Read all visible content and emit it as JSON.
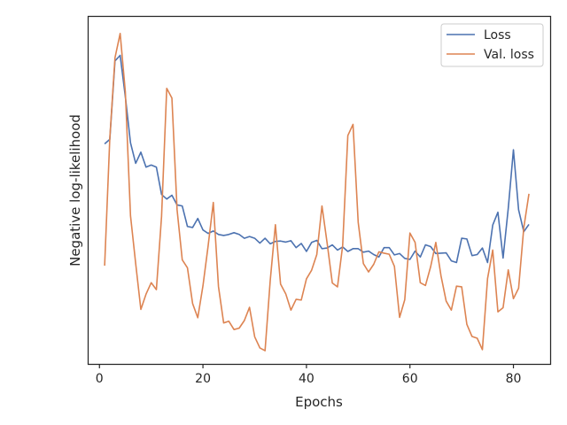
{
  "chart_data": {
    "type": "line",
    "title": "",
    "xlabel": "Epochs",
    "ylabel": "Negative log-likelihood",
    "xlim": [
      -2.1,
      87.1
    ],
    "ylim": [
      0,
      100
    ],
    "x_ticks": [
      0,
      20,
      40,
      60,
      80
    ],
    "y_ticks_visible": false,
    "grid": false,
    "legend": {
      "position": "top-right"
    },
    "colors": {
      "loss": "#4c72b0",
      "val_loss": "#dd8452",
      "axis": "#262626"
    },
    "x": [
      1,
      2,
      3,
      4,
      5,
      6,
      7,
      8,
      9,
      10,
      11,
      12,
      13,
      14,
      15,
      16,
      17,
      18,
      19,
      20,
      21,
      22,
      23,
      24,
      25,
      26,
      27,
      28,
      29,
      30,
      31,
      32,
      33,
      34,
      35,
      36,
      37,
      38,
      39,
      40,
      41,
      42,
      43,
      44,
      45,
      46,
      47,
      48,
      49,
      50,
      51,
      52,
      53,
      54,
      55,
      56,
      57,
      58,
      59,
      60,
      61,
      62,
      63,
      64,
      65,
      66,
      67,
      68,
      69,
      70,
      71,
      72,
      73,
      74,
      75,
      76,
      77,
      78,
      79,
      80,
      81,
      82,
      83
    ],
    "series": [
      {
        "name": "Loss",
        "values": [
          63.4,
          64.7,
          87.3,
          88.9,
          77.0,
          63.7,
          57.8,
          61.0,
          56.7,
          57.3,
          56.7,
          48.8,
          47.5,
          48.6,
          45.8,
          45.5,
          39.6,
          39.3,
          41.9,
          38.6,
          37.6,
          38.3,
          37.3,
          37.0,
          37.3,
          37.8,
          37.3,
          36.2,
          36.7,
          36.2,
          34.8,
          36.2,
          34.6,
          35.3,
          35.4,
          35.1,
          35.5,
          33.5,
          34.7,
          32.4,
          35.0,
          35.6,
          33.2,
          33.4,
          34.3,
          32.8,
          33.7,
          32.4,
          33.2,
          33.2,
          32.2,
          32.5,
          31.5,
          30.8,
          33.5,
          33.5,
          31.4,
          31.8,
          30.4,
          30.1,
          32.5,
          30.8,
          34.3,
          33.8,
          31.8,
          31.9,
          32.0,
          29.7,
          29.2,
          36.2,
          36.0,
          31.2,
          31.5,
          33.4,
          29.2,
          40.0,
          43.7,
          30.5,
          44.8,
          61.7,
          44.4,
          38.1,
          40.2
        ]
      },
      {
        "name": "Val. loss",
        "values": [
          28.3,
          65.0,
          88.2,
          95.2,
          78.4,
          42.7,
          28.9,
          15.7,
          20.1,
          23.4,
          21.4,
          42.5,
          79.4,
          76.6,
          44.4,
          30.0,
          27.7,
          17.4,
          13.3,
          22.5,
          34.0,
          46.5,
          22.3,
          11.8,
          12.3,
          9.9,
          10.3,
          12.5,
          16.3,
          7.8,
          4.6,
          3.8,
          24.0,
          40.1,
          23.0,
          20.2,
          15.5,
          18.6,
          18.4,
          24.5,
          27.0,
          31.5,
          45.5,
          34.8,
          23.3,
          22.2,
          34.1,
          65.8,
          69.0,
          40.8,
          28.9,
          26.5,
          28.7,
          32.3,
          31.9,
          31.6,
          28.1,
          13.4,
          18.5,
          37.7,
          35.0,
          23.4,
          22.6,
          28.0,
          35.0,
          25.4,
          18.1,
          15.5,
          22.4,
          22.2,
          11.4,
          7.9,
          7.4,
          4.1,
          24.6,
          32.8,
          15.0,
          16.2,
          27.1,
          18.8,
          21.8,
          39.2,
          49.0
        ]
      }
    ]
  }
}
